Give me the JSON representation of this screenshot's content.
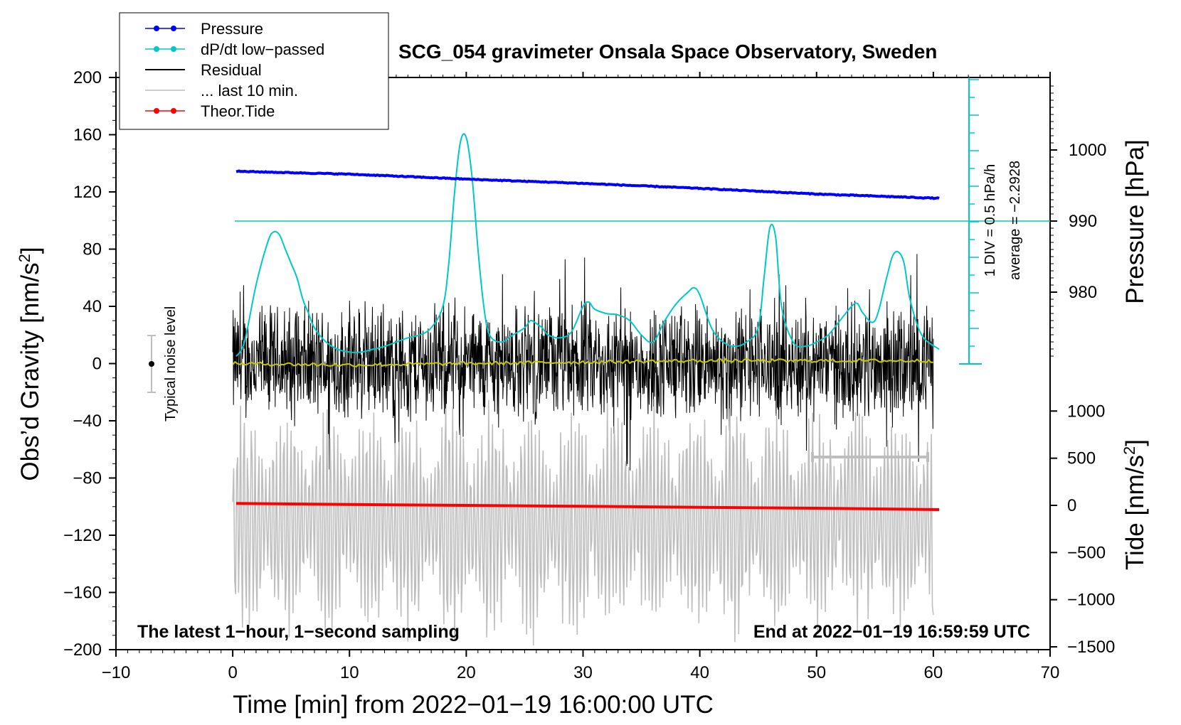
{
  "chart_data": {
    "type": "line",
    "title": "SCG_054 gravimeter Onsala Space Observatory, Sweden",
    "xlabel": "Time [min] from 2022−01−19 16:00:00 UTC",
    "ylabel_left": "Obs’d Gravity [nm/s",
    "ylabel_left_sup": "2",
    "ylabel_left_end": "]",
    "ylabel_pressure": "Pressure [hPa]",
    "ylabel_tide": "Tide [nm/s",
    "ylabel_tide_sup": "2",
    "ylabel_tide_end": "]",
    "xlim": [
      -10,
      70
    ],
    "ylim": [
      -200,
      200
    ],
    "x_ticks": [
      "−10",
      "0",
      "10",
      "20",
      "30",
      "40",
      "50",
      "60",
      "70"
    ],
    "x_tick_values": [
      -10,
      0,
      10,
      20,
      30,
      40,
      50,
      60,
      70
    ],
    "y_ticks": [
      "200",
      "160",
      "120",
      "80",
      "40",
      "0",
      "−40",
      "−80",
      "−120",
      "−160",
      "−200"
    ],
    "y_tick_values": [
      200,
      160,
      120,
      80,
      40,
      0,
      -40,
      -80,
      -120,
      -160,
      -200
    ],
    "pressure_ticks": [
      "1000",
      "990",
      "980"
    ],
    "pressure_tick_values": [
      1000,
      990,
      980
    ],
    "tide_ticks": [
      "1000",
      "500",
      "0",
      "−500",
      "−1000",
      "−1500"
    ],
    "tide_tick_values": [
      1000,
      500,
      0,
      -500,
      -1000,
      -1500
    ],
    "legend": [
      {
        "label": "Pressure",
        "color": "#0000ff",
        "marker": true
      },
      {
        "label": "dP/dt low−passed",
        "color": "#00c8c8",
        "marker": true
      },
      {
        "label": "Residual",
        "color": "#000000",
        "marker": false
      },
      {
        "label": "... last 10 min.",
        "color": "#bebebe",
        "marker": false
      },
      {
        "label": "Theor.Tide",
        "color": "#ff0000",
        "marker": true
      }
    ],
    "annotations": {
      "left_bottom": "The latest 1−hour, 1−second sampling",
      "right_bottom": "End at 2022−01−19 16:59:59 UTC",
      "noise_label": "Typical noise level",
      "dpdt_scale": "1 DIV = 0.5 hPa/h",
      "dpdt_average": "average = −2.2928"
    },
    "series": [
      {
        "name": "Pressure",
        "axis": "pressure",
        "x": [
          0.3,
          10,
          20,
          30,
          40,
          50,
          60.5
        ],
        "values": [
          997.0,
          996.6,
          995.9,
          995.3,
          994.6,
          993.8,
          993.2
        ]
      },
      {
        "name": "dP/dt low-passed",
        "axis": "gravity",
        "x": [
          0.3,
          1,
          2,
          3,
          3.5,
          4,
          4.5,
          5,
          5.5,
          6,
          6.5,
          7,
          8,
          9,
          10,
          11,
          12,
          13,
          14,
          15,
          16,
          17,
          18,
          18.5,
          19,
          19.5,
          20,
          20.5,
          21,
          21.5,
          22,
          23,
          24,
          25,
          25.5,
          26,
          26.5,
          27,
          28,
          29,
          30,
          30.5,
          31,
          32,
          33,
          34,
          35,
          36,
          37,
          38,
          39,
          39.5,
          40,
          41,
          42,
          43,
          44,
          45,
          45.5,
          46,
          46.5,
          47,
          48,
          49,
          50,
          51,
          52,
          53,
          53.5,
          54,
          55,
          56,
          56.5,
          57,
          57.5,
          58,
          59,
          60.5
        ],
        "values": [
          5,
          15,
          55,
          85,
          92,
          90,
          80,
          70,
          60,
          45,
          35,
          25,
          15,
          10,
          8,
          8,
          10,
          12,
          15,
          18,
          20,
          25,
          40,
          70,
          120,
          155,
          158,
          130,
          80,
          40,
          20,
          15,
          20,
          25,
          30,
          28,
          25,
          20,
          18,
          22,
          40,
          43,
          38,
          35,
          34,
          30,
          20,
          15,
          30,
          42,
          50,
          53,
          48,
          25,
          15,
          12,
          15,
          25,
          60,
          95,
          88,
          40,
          15,
          12,
          15,
          20,
          30,
          40,
          42,
          35,
          30,
          60,
          75,
          78,
          70,
          45,
          20,
          10
        ]
      },
      {
        "name": "Residual",
        "axis": "gravity",
        "x_range": [
          0,
          60
        ],
        "amplitude_typical": 40,
        "amplitude_peak": 80
      },
      {
        "name": "Residual smoothed",
        "axis": "gravity",
        "color": "#c8c800",
        "x": [
          0,
          10,
          20,
          30,
          40,
          50,
          60
        ],
        "values": [
          0,
          -1,
          0,
          1,
          2,
          2,
          2
        ]
      },
      {
        "name": "... last 10 min.",
        "axis": "gravity",
        "x_range": [
          0,
          60
        ],
        "center": -110,
        "amplitude_peak": 90
      },
      {
        "name": "Theor.Tide",
        "axis": "tide",
        "x": [
          0.3,
          10,
          20,
          30,
          40,
          50,
          60.5
        ],
        "values": [
          20,
          10,
          0,
          -10,
          -20,
          -30,
          -45
        ]
      }
    ]
  }
}
